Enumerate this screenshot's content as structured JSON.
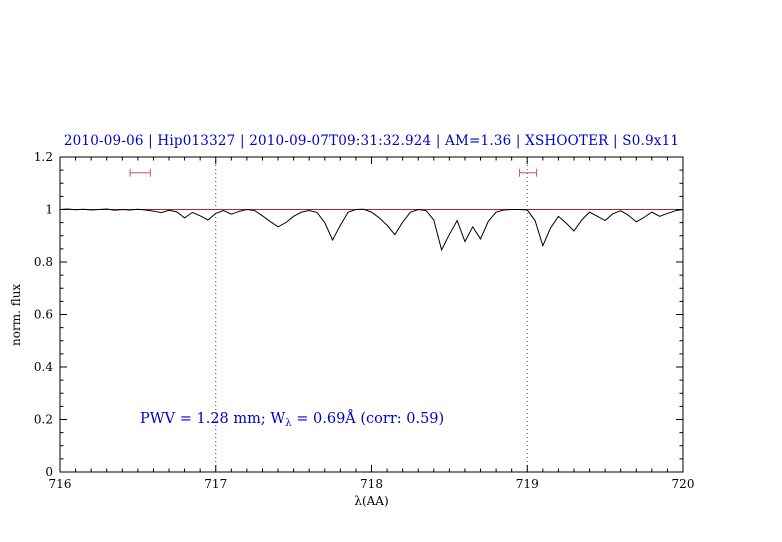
{
  "chart_data": {
    "type": "line",
    "title": "2010-09-06 | Hip013327 | 2010-09-07T09:31:32.924 | AM=1.36 | XSHOOTER | S0.9x11",
    "xlabel": "λ(AA)",
    "ylabel": "norm. flux",
    "xlim": [
      716,
      720
    ],
    "ylim": [
      0,
      1.2
    ],
    "x_ticks": {
      "values": [
        716,
        717,
        718,
        719,
        720
      ],
      "labels": [
        "716",
        "717",
        "718",
        "719",
        "720"
      ]
    },
    "y_ticks": {
      "values": [
        0,
        0.2,
        0.4,
        0.6,
        0.8,
        1,
        1.2
      ],
      "labels": [
        "0",
        "0.2",
        "0.4",
        "0.6",
        "0.8",
        "1",
        "1.2"
      ]
    },
    "x_minor_step": 0.1,
    "y_minor_step": 0.05,
    "grid": "dotted-vertical-only",
    "legend": "none",
    "vlines": [
      {
        "x": 717,
        "style": "dotted"
      },
      {
        "x": 719,
        "style": "dotted"
      }
    ],
    "continuum": {
      "y": 1.0,
      "color": "#bb2222"
    },
    "band_markers": [
      {
        "x_from": 716.45,
        "x_to": 716.58,
        "y": 1.14,
        "color": "#cc5555"
      },
      {
        "x_from": 718.95,
        "x_to": 719.06,
        "y": 1.14,
        "color": "#cc5555"
      }
    ],
    "colors": {
      "spectrum": "#000000",
      "title": "#0000cd",
      "annotation": "#0000cd",
      "axis": "#000000"
    },
    "annotation": {
      "text": "PWV = 1.28 mm; Wλ = 0.69Å (corr: 0.59)",
      "prefix": "PWV  =  1.28  mm;  W",
      "sub": "λ",
      "suffix": "  =  0.69Å  (corr:  0.59)"
    },
    "series": [
      {
        "name": "spectrum",
        "x": [
          716,
          716.05,
          716.1,
          716.15,
          716.2,
          716.25,
          716.3,
          716.35,
          716.4,
          716.45,
          716.5,
          716.55,
          716.6,
          716.65,
          716.7,
          716.75,
          716.8,
          716.85,
          716.9,
          716.95,
          717,
          717.05,
          717.1,
          717.15,
          717.2,
          717.25,
          717.3,
          717.35,
          717.4,
          717.45,
          717.5,
          717.55,
          717.6,
          717.65,
          717.7,
          717.75,
          717.8,
          717.85,
          717.9,
          717.95,
          718,
          718.05,
          718.1,
          718.15,
          718.2,
          718.25,
          718.3,
          718.35,
          718.4,
          718.45,
          718.5,
          718.55,
          718.6,
          718.65,
          718.7,
          718.75,
          718.8,
          718.85,
          718.9,
          718.95,
          719,
          719.05,
          719.1,
          719.15,
          719.2,
          719.25,
          719.3,
          719.35,
          719.4,
          719.45,
          719.5,
          719.55,
          719.6,
          719.65,
          719.7,
          719.75,
          719.8,
          719.85,
          719.9,
          719.95,
          720
        ],
        "y": [
          1.0,
          1.002,
          0.999,
          1.001,
          0.998,
          1.0,
          1.002,
          0.997,
          1.0,
          0.998,
          1.001,
          0.998,
          0.994,
          0.988,
          0.997,
          0.991,
          0.968,
          0.989,
          0.976,
          0.96,
          0.985,
          0.996,
          0.982,
          0.993,
          1.0,
          0.996,
          0.976,
          0.954,
          0.934,
          0.95,
          0.974,
          0.99,
          0.996,
          0.989,
          0.95,
          0.884,
          0.94,
          0.99,
          1.0,
          1.001,
          0.99,
          0.968,
          0.94,
          0.904,
          0.952,
          0.99,
          1.0,
          0.996,
          0.96,
          0.846,
          0.905,
          0.958,
          0.878,
          0.934,
          0.888,
          0.955,
          0.99,
          0.998,
          1.0,
          1.0,
          0.998,
          0.958,
          0.862,
          0.93,
          0.974,
          0.948,
          0.918,
          0.96,
          0.99,
          0.974,
          0.958,
          0.984,
          0.995,
          0.978,
          0.953,
          0.97,
          0.99,
          0.974,
          0.985,
          0.995,
          1.0
        ]
      }
    ]
  }
}
